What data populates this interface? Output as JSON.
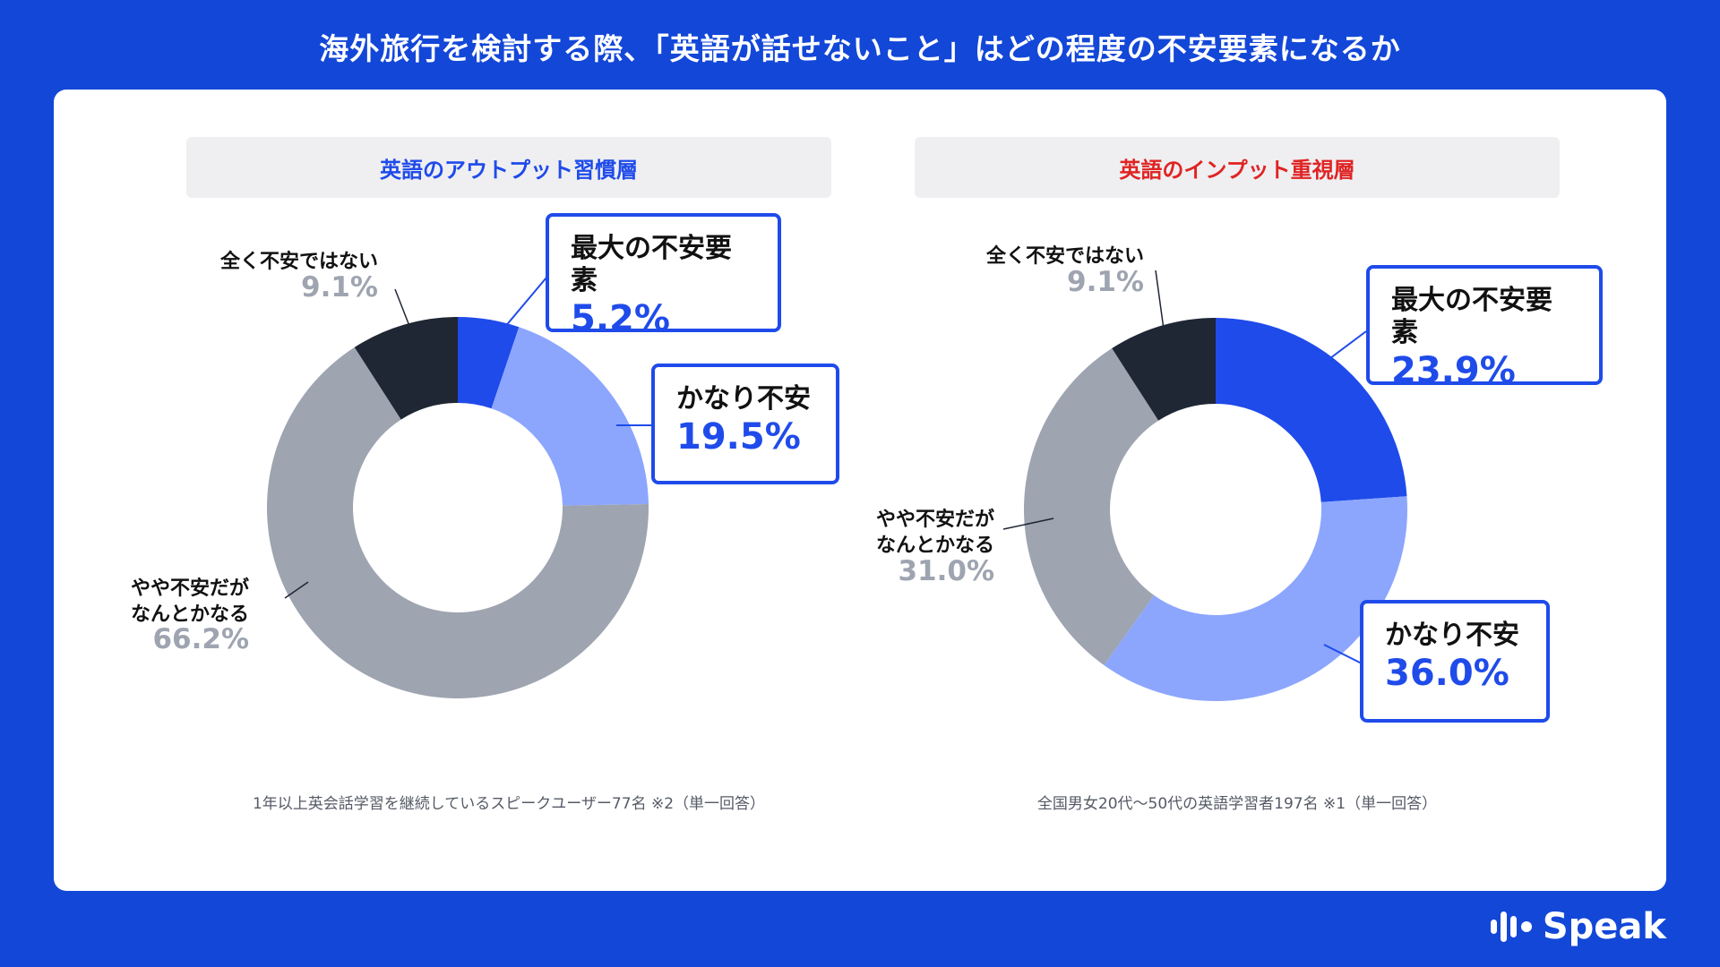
{
  "title": "海外旅行を検討する際、「英語が話せないこと」はどの程度の不安要素になるか",
  "logo": {
    "text": "Speak"
  },
  "colors": {
    "background": "#1347d8",
    "saidai": "#1f4bea",
    "kanari": "#8ca6fe",
    "yaya": "#9ea4b0",
    "mattaku": "#1f2634"
  },
  "panels": [
    {
      "header": "英語のアウトプット習慣層",
      "header_color": "#1f4bea",
      "footnote": "1年以上英会話学習を継続しているスピークユーザー77名 ※2（単一回答）"
    },
    {
      "header": "英語のインプット重視層",
      "header_color": "#e02424",
      "footnote": "全国男女20代〜50代の英語学習者197名 ※1（単一回答）"
    }
  ],
  "chart_data": [
    {
      "type": "pie",
      "title": "英語のアウトプット習慣層",
      "slices": [
        {
          "label": "最大の不安要素",
          "value": 5.2,
          "value_label": "5.2%",
          "color": "#1f4bea"
        },
        {
          "label": "かなり不安",
          "value": 19.5,
          "value_label": "19.5%",
          "color": "#8ca6fe"
        },
        {
          "label": "やや不安だがなんとかなる",
          "label_lines": [
            "やや不安だが",
            "なんとかなる"
          ],
          "value": 66.2,
          "value_label": "66.2%",
          "color": "#9ea4b0"
        },
        {
          "label": "全く不安ではない",
          "value": 9.1,
          "value_label": "9.1%",
          "color": "#1f2634"
        }
      ]
    },
    {
      "type": "pie",
      "title": "英語のインプット重視層",
      "slices": [
        {
          "label": "最大の不安要素",
          "value": 23.9,
          "value_label": "23.9%",
          "color": "#1f4bea"
        },
        {
          "label": "かなり不安",
          "value": 36.0,
          "value_label": "36.0%",
          "color": "#8ca6fe"
        },
        {
          "label": "やや不安だがなんとかなる",
          "label_lines": [
            "やや不安だが",
            "なんとかなる"
          ],
          "value": 31.0,
          "value_label": "31.0%",
          "color": "#9ea4b0"
        },
        {
          "label": "全く不安ではない",
          "value": 9.1,
          "value_label": "9.1%",
          "color": "#1f2634"
        }
      ]
    }
  ]
}
